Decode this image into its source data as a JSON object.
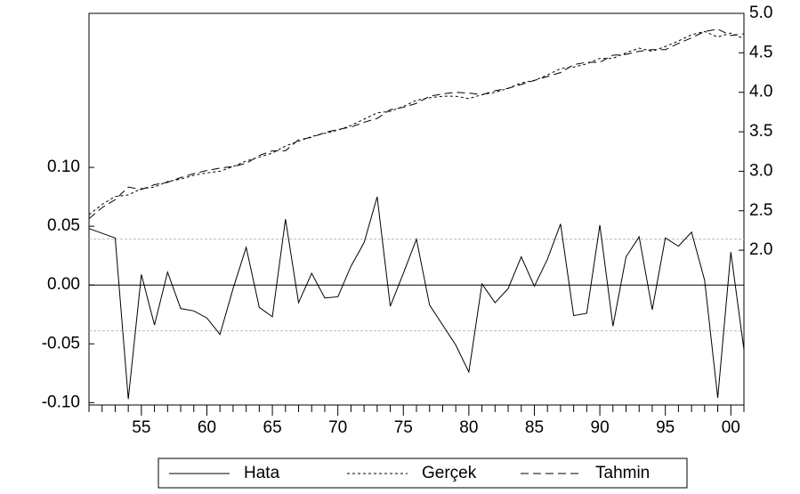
{
  "chart_data": {
    "type": "line",
    "categories": [
      null,
      null,
      null,
      null,
      "55",
      null,
      null,
      null,
      null,
      "60",
      null,
      null,
      null,
      null,
      "65",
      null,
      null,
      null,
      null,
      "70",
      null,
      null,
      null,
      null,
      "75",
      null,
      null,
      null,
      null,
      "80",
      null,
      null,
      null,
      null,
      "85",
      null,
      null,
      null,
      null,
      "90",
      null,
      null,
      null,
      null,
      "95",
      null,
      null,
      null,
      null,
      "00",
      null
    ],
    "series": [
      {
        "name": "Hata",
        "color": "#000000",
        "dash": "solid",
        "axis": "y",
        "values": [
          0.048,
          0.044,
          0.04,
          -0.097,
          0.009,
          -0.034,
          0.011,
          -0.02,
          -0.022,
          -0.028,
          -0.042,
          -0.003,
          0.032,
          -0.019,
          -0.027,
          0.056,
          -0.015,
          0.01,
          -0.011,
          -0.01,
          0.016,
          0.036,
          0.075,
          -0.018,
          0.01,
          0.039,
          -0.017,
          -0.034,
          -0.051,
          -0.074,
          0.001,
          -0.015,
          -0.003,
          0.024,
          -0.001,
          0.022,
          0.052,
          -0.026,
          -0.024,
          0.051,
          -0.035,
          0.024,
          0.041,
          -0.021,
          0.04,
          0.033,
          0.045,
          0.004,
          -0.096,
          0.028,
          -0.055
        ]
      },
      {
        "name": "Gerçek",
        "color": "#000000",
        "dash": "dotted",
        "axis": "y2",
        "values": [
          2.45,
          2.58,
          2.68,
          2.7,
          2.78,
          2.8,
          2.87,
          2.9,
          2.95,
          2.98,
          3.0,
          3.06,
          3.13,
          3.18,
          3.23,
          3.32,
          3.38,
          3.44,
          3.48,
          3.52,
          3.58,
          3.66,
          3.74,
          3.76,
          3.82,
          3.9,
          3.93,
          3.95,
          3.95,
          3.92,
          3.97,
          4.0,
          4.05,
          4.12,
          4.15,
          4.22,
          4.3,
          4.32,
          4.36,
          4.43,
          4.43,
          4.5,
          4.56,
          4.52,
          4.58,
          4.65,
          4.73,
          4.77,
          4.7,
          4.75,
          4.68
        ]
      },
      {
        "name": "Tahmin",
        "color": "#000000",
        "dash": "dashed",
        "axis": "y2",
        "values": [
          2.4,
          2.54,
          2.64,
          2.8,
          2.77,
          2.83,
          2.86,
          2.92,
          2.97,
          3.01,
          3.04,
          3.06,
          3.1,
          3.2,
          3.26,
          3.26,
          3.4,
          3.43,
          3.49,
          3.53,
          3.56,
          3.62,
          3.67,
          3.78,
          3.81,
          3.86,
          3.95,
          3.98,
          4.0,
          3.99,
          3.97,
          4.02,
          4.05,
          4.1,
          4.15,
          4.2,
          4.25,
          4.35,
          4.38,
          4.38,
          4.47,
          4.48,
          4.52,
          4.54,
          4.54,
          4.62,
          4.69,
          4.77,
          4.8,
          4.72,
          4.74
        ]
      }
    ],
    "ylim": [
      -0.102,
      0.231
    ],
    "yticks": [
      {
        "value": -0.1,
        "label": "-0.10"
      },
      {
        "value": -0.05,
        "label": "-0.05"
      },
      {
        "value": 0,
        "label": "0.00"
      },
      {
        "value": 0.05,
        "label": "0.05"
      },
      {
        "value": 0.1,
        "label": "0.10"
      }
    ],
    "y2lim": [
      0.04,
      5.0
    ],
    "y2ticks": [
      {
        "value": 2,
        "label": "2.0"
      },
      {
        "value": 2.5,
        "label": "2.5"
      },
      {
        "value": 3,
        "label": "3.0"
      },
      {
        "value": 3.5,
        "label": "3.5"
      },
      {
        "value": 4,
        "label": "4.0"
      },
      {
        "value": 4.5,
        "label": "4.5"
      },
      {
        "value": 5,
        "label": "5.0"
      }
    ],
    "ref_lines": [
      0.039,
      -0.039
    ],
    "zero_line": true,
    "legend": "bottom"
  }
}
